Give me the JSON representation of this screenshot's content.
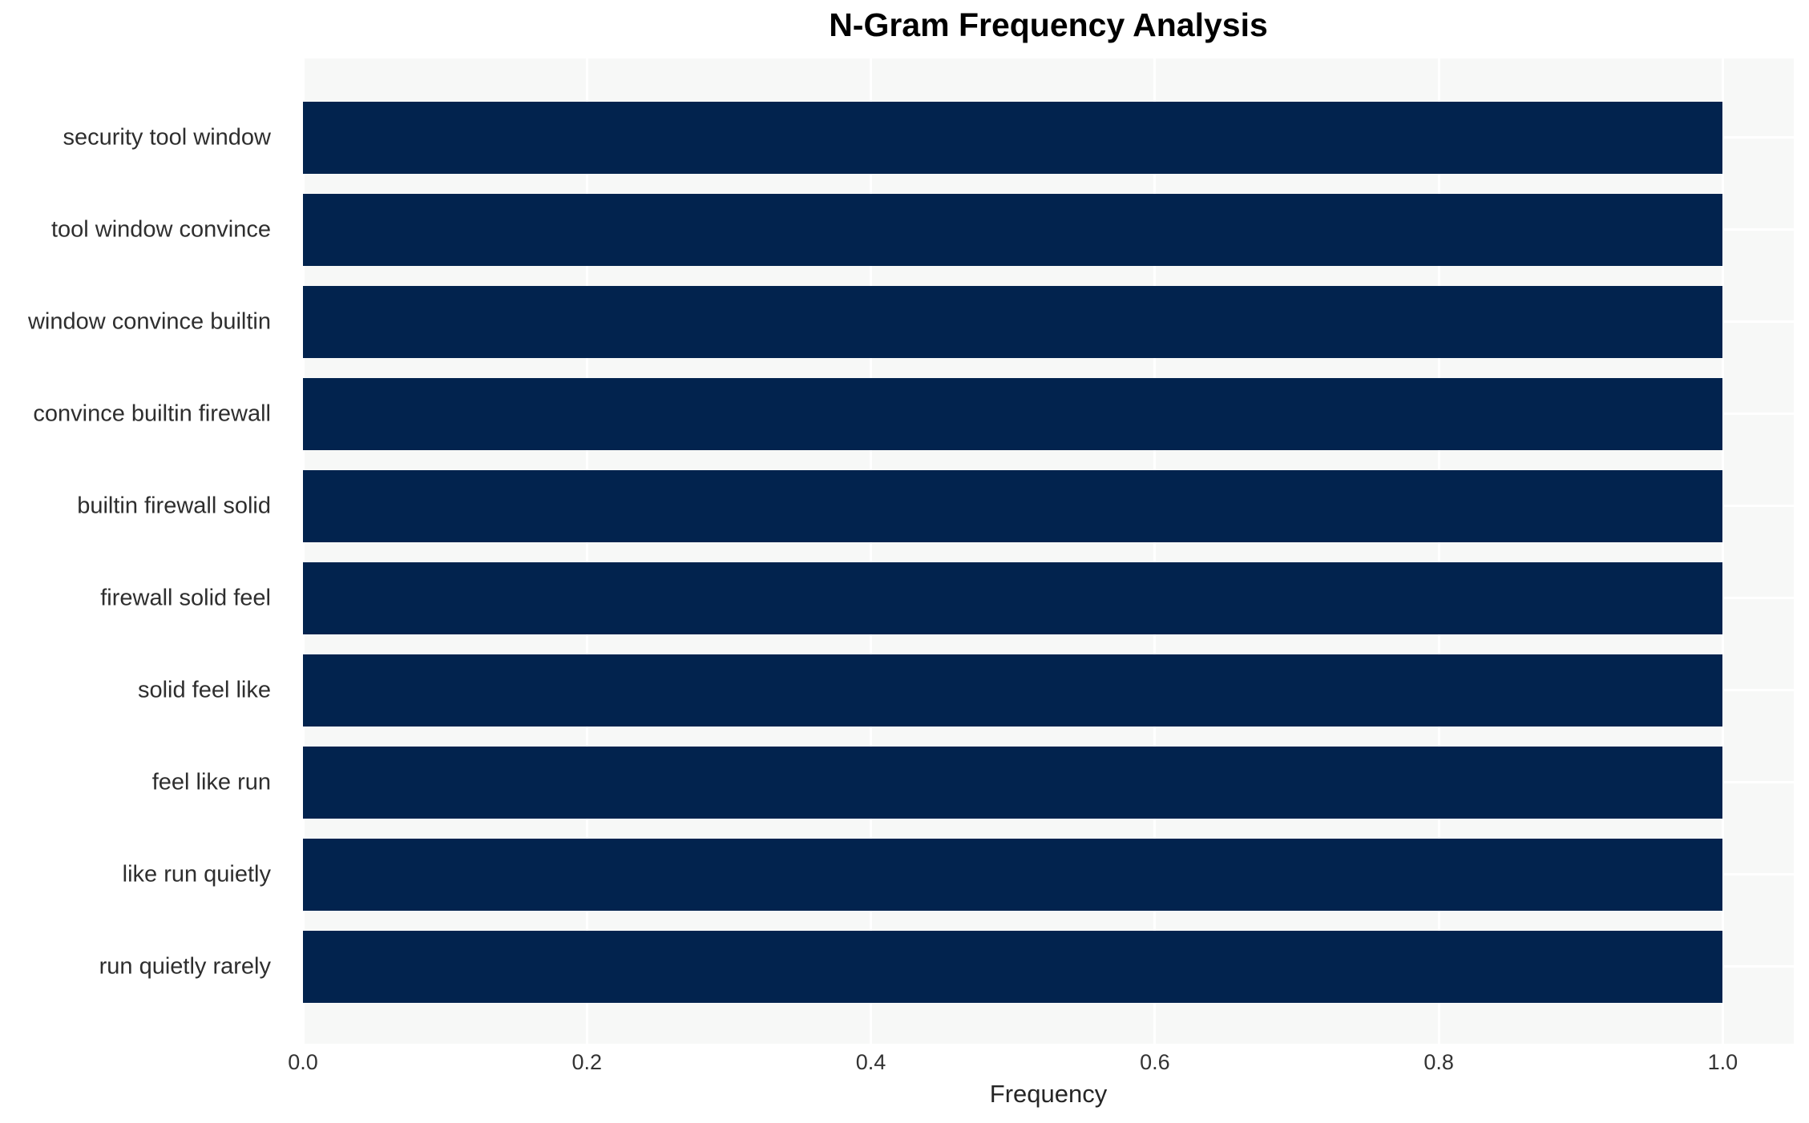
{
  "title": "N-Gram Frequency Analysis",
  "colors": {
    "bar": "#02234e",
    "plot_background": "#f7f8f7",
    "gridline": "#ffffff",
    "title_text": "#000000",
    "label_text": "#2e2e2e"
  },
  "chart_data": {
    "type": "bar",
    "orientation": "horizontal",
    "title": "N-Gram Frequency Analysis",
    "xlabel": "Frequency",
    "ylabel": "",
    "categories": [
      "security tool window",
      "tool window convince",
      "window convince builtin",
      "convince builtin firewall",
      "builtin firewall solid",
      "firewall solid feel",
      "solid feel like",
      "feel like run",
      "like run quietly",
      "run quietly rarely"
    ],
    "values": [
      1.0,
      1.0,
      1.0,
      1.0,
      1.0,
      1.0,
      1.0,
      1.0,
      1.0,
      1.0
    ],
    "xlim": [
      0,
      1.05
    ],
    "xticks": [
      0.0,
      0.2,
      0.4,
      0.6,
      0.8,
      1.0
    ],
    "xtick_labels": [
      "0.0",
      "0.2",
      "0.4",
      "0.6",
      "0.8",
      "1.0"
    ],
    "grid": true,
    "legend": false
  }
}
